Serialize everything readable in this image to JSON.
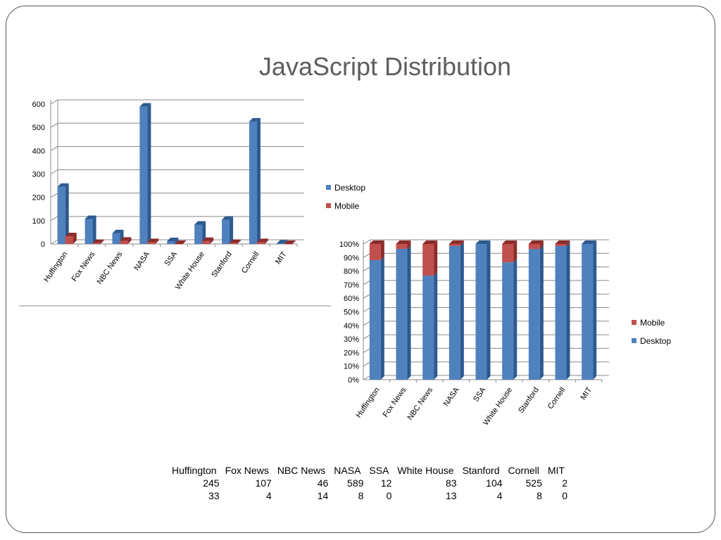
{
  "slide": {
    "title": "JavaScript Distribution"
  },
  "colors": {
    "desktop": "#4f81bd",
    "desktop_side": "#2c5a8f",
    "mobile": "#c0504d",
    "mobile_side": "#8c2c2a",
    "grid": "#000000"
  },
  "chart_data": [
    {
      "type": "bar",
      "title": "",
      "categories": [
        "Huffington",
        "Fox News",
        "NBC News",
        "NASA",
        "SSA",
        "White House",
        "Stanford",
        "Cornell",
        "MIT"
      ],
      "series": [
        {
          "name": "Desktop",
          "values": [
            245,
            107,
            46,
            589,
            12,
            83,
            104,
            525,
            2
          ]
        },
        {
          "name": "Mobile",
          "values": [
            33,
            4,
            14,
            8,
            0,
            13,
            4,
            8,
            0
          ]
        }
      ],
      "yticks": [
        "0",
        "100",
        "200",
        "300",
        "400",
        "500",
        "600"
      ],
      "ylim": [
        0,
        600
      ],
      "legend": [
        "Desktop",
        "Mobile"
      ],
      "legend_position": "right"
    },
    {
      "type": "bar",
      "stacked": "percent",
      "title": "",
      "categories": [
        "Huffington",
        "Fox News",
        "NBC News",
        "NASA",
        "SSA",
        "White House",
        "Stanford",
        "Cornell",
        "MIT"
      ],
      "series": [
        {
          "name": "Desktop",
          "values": [
            245,
            107,
            46,
            589,
            12,
            83,
            104,
            525,
            2
          ]
        },
        {
          "name": "Mobile",
          "values": [
            33,
            4,
            14,
            8,
            0,
            13,
            4,
            8,
            0
          ]
        }
      ],
      "yticks": [
        "0%",
        "10%",
        "20%",
        "30%",
        "40%",
        "50%",
        "60%",
        "70%",
        "80%",
        "90%",
        "100%"
      ],
      "ylim": [
        0,
        100
      ],
      "legend": [
        "Mobile",
        "Desktop"
      ],
      "legend_position": "right"
    }
  ],
  "table": {
    "header": [
      "Huffington",
      "Fox News",
      "NBC News",
      "NASA",
      "SSA",
      "White House",
      "Stanford",
      "Cornell",
      "MIT"
    ],
    "rows": [
      [
        "245",
        "107",
        "46",
        "589",
        "12",
        "83",
        "104",
        "525",
        "2"
      ],
      [
        "33",
        "4",
        "14",
        "8",
        "0",
        "13",
        "4",
        "8",
        "0"
      ]
    ]
  }
}
